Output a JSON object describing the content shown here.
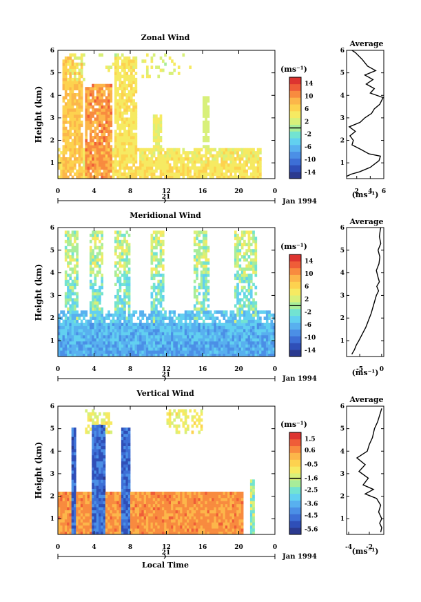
{
  "colors": {
    "scale": [
      "#2b3a8f",
      "#2f4fb8",
      "#3d6fd6",
      "#4b8fe6",
      "#58b0ef",
      "#62d0f0",
      "#72e3d2",
      "#a8ed9a",
      "#d8f07a",
      "#f6ea62",
      "#fdd24f",
      "#fcb64a",
      "#f88b3f",
      "#ef5d38",
      "#dd3430"
    ],
    "axis": "#000000"
  },
  "xaxis": {
    "ticks": [
      "0",
      "4",
      "8",
      "12",
      "16",
      "20",
      "0"
    ],
    "day_label": "21",
    "date_label": "Jan 1994",
    "xlabel": "Local Time"
  },
  "chart_data": [
    {
      "type": "heatmap",
      "title": "Zonal Wind",
      "ylabel": "Height (km)",
      "yticks": [
        "1",
        "2",
        "3",
        "4",
        "5",
        "6"
      ],
      "ylim": [
        0.3,
        6
      ],
      "xlim": [
        0,
        24
      ],
      "colorbar": {
        "unit": "(ms⁻¹)",
        "ticks": [
          "14",
          "10",
          "6",
          "2",
          "-2",
          "-6",
          "-10",
          "-14"
        ],
        "range": [
          -16,
          16
        ],
        "marker": 0
      },
      "profile": {
        "type": "line",
        "title": "Average",
        "xlabel": "(ms⁻¹)",
        "xticks": [
          "2",
          "4",
          "6"
        ],
        "xlim": [
          0.5,
          6
        ],
        "yticks": [
          "1",
          "2",
          "3",
          "4",
          "5",
          "6"
        ],
        "ylim": [
          0.3,
          6
        ],
        "points": [
          [
            0.5,
            0.4
          ],
          [
            1.2,
            0.5
          ],
          [
            2.4,
            0.6
          ],
          [
            4.0,
            0.8
          ],
          [
            5.3,
            1.1
          ],
          [
            5.5,
            1.3
          ],
          [
            3.8,
            1.4
          ],
          [
            2.6,
            1.6
          ],
          [
            1.3,
            1.8
          ],
          [
            1.5,
            2.0
          ],
          [
            1.0,
            2.2
          ],
          [
            1.8,
            2.4
          ],
          [
            0.9,
            2.6
          ],
          [
            2.5,
            2.8
          ],
          [
            3.2,
            3.0
          ],
          [
            4.2,
            3.2
          ],
          [
            4.6,
            3.4
          ],
          [
            5.4,
            3.6
          ],
          [
            5.9,
            3.9
          ],
          [
            4.0,
            4.1
          ],
          [
            4.6,
            4.3
          ],
          [
            3.4,
            4.5
          ],
          [
            4.4,
            4.7
          ],
          [
            3.2,
            4.9
          ],
          [
            4.8,
            5.1
          ],
          [
            3.6,
            5.3
          ],
          [
            2.8,
            5.6
          ],
          [
            1.8,
            5.9
          ],
          [
            1.3,
            6.0
          ]
        ]
      }
    },
    {
      "type": "heatmap",
      "title": "Meridional Wind",
      "ylabel": "Height (km)",
      "yticks": [
        "1",
        "2",
        "3",
        "4",
        "5",
        "6"
      ],
      "ylim": [
        0.3,
        6
      ],
      "xlim": [
        0,
        24
      ],
      "colorbar": {
        "unit": "(ms⁻¹)",
        "ticks": [
          "14",
          "10",
          "6",
          "2",
          "-2",
          "-6",
          "-10",
          "-14"
        ],
        "range": [
          -16,
          16
        ],
        "marker": 0
      },
      "profile": {
        "type": "line",
        "title": "Average",
        "xlabel": "(ms⁻¹)",
        "xticks": [
          "-5",
          "0"
        ],
        "xlim": [
          -8,
          0.5
        ],
        "yticks": [
          "1",
          "2",
          "3",
          "4",
          "5",
          "6"
        ],
        "ylim": [
          0.3,
          6
        ],
        "points": [
          [
            -6.8,
            0.4
          ],
          [
            -6.2,
            0.6
          ],
          [
            -5.8,
            0.8
          ],
          [
            -5.2,
            1.0
          ],
          [
            -4.4,
            1.3
          ],
          [
            -3.6,
            1.6
          ],
          [
            -3.0,
            1.9
          ],
          [
            -2.4,
            2.2
          ],
          [
            -1.8,
            2.6
          ],
          [
            -1.2,
            3.0
          ],
          [
            -0.7,
            3.2
          ],
          [
            -1.1,
            3.4
          ],
          [
            -0.5,
            3.6
          ],
          [
            -0.8,
            3.8
          ],
          [
            -1.2,
            4.1
          ],
          [
            -0.6,
            4.4
          ],
          [
            -0.4,
            4.7
          ],
          [
            -0.8,
            5.0
          ],
          [
            -0.2,
            5.3
          ],
          [
            -0.5,
            5.6
          ],
          [
            -0.3,
            5.9
          ],
          [
            -0.2,
            6.0
          ]
        ]
      }
    },
    {
      "type": "heatmap",
      "title": "Vertical Wind",
      "ylabel": "Height (km)",
      "yticks": [
        "1",
        "2",
        "3",
        "4",
        "5",
        "6"
      ],
      "ylim": [
        0.3,
        6
      ],
      "xlim": [
        0,
        24
      ],
      "colorbar": {
        "unit": "(ms⁻¹)",
        "ticks": [
          "1.5",
          "0.6",
          "-0.5",
          "-1.6",
          "-2.5",
          "-3.6",
          "-4.5",
          "-5.6"
        ],
        "range": [
          -6,
          2
        ],
        "marker": -1.6
      },
      "profile": {
        "type": "line",
        "title": "Average",
        "xlabel": "(ms⁻¹)",
        "xticks": [
          "-4",
          "-2"
        ],
        "xlim": [
          -4.2,
          -0.6
        ],
        "yticks": [
          "1",
          "2",
          "3",
          "4",
          "5",
          "6"
        ],
        "ylim": [
          0.3,
          6
        ],
        "points": [
          [
            -0.9,
            0.4
          ],
          [
            -0.8,
            0.6
          ],
          [
            -1.0,
            0.8
          ],
          [
            -0.8,
            1.0
          ],
          [
            -1.1,
            1.3
          ],
          [
            -0.9,
            1.6
          ],
          [
            -1.3,
            1.9
          ],
          [
            -2.4,
            2.1
          ],
          [
            -1.6,
            2.3
          ],
          [
            -2.6,
            2.5
          ],
          [
            -2.1,
            2.8
          ],
          [
            -3.0,
            3.1
          ],
          [
            -2.4,
            3.4
          ],
          [
            -3.2,
            3.7
          ],
          [
            -2.2,
            4.0
          ],
          [
            -2.0,
            4.3
          ],
          [
            -1.7,
            4.6
          ],
          [
            -1.5,
            5.0
          ],
          [
            -1.2,
            5.3
          ],
          [
            -1.0,
            5.6
          ],
          [
            -0.8,
            5.9
          ]
        ]
      }
    }
  ]
}
